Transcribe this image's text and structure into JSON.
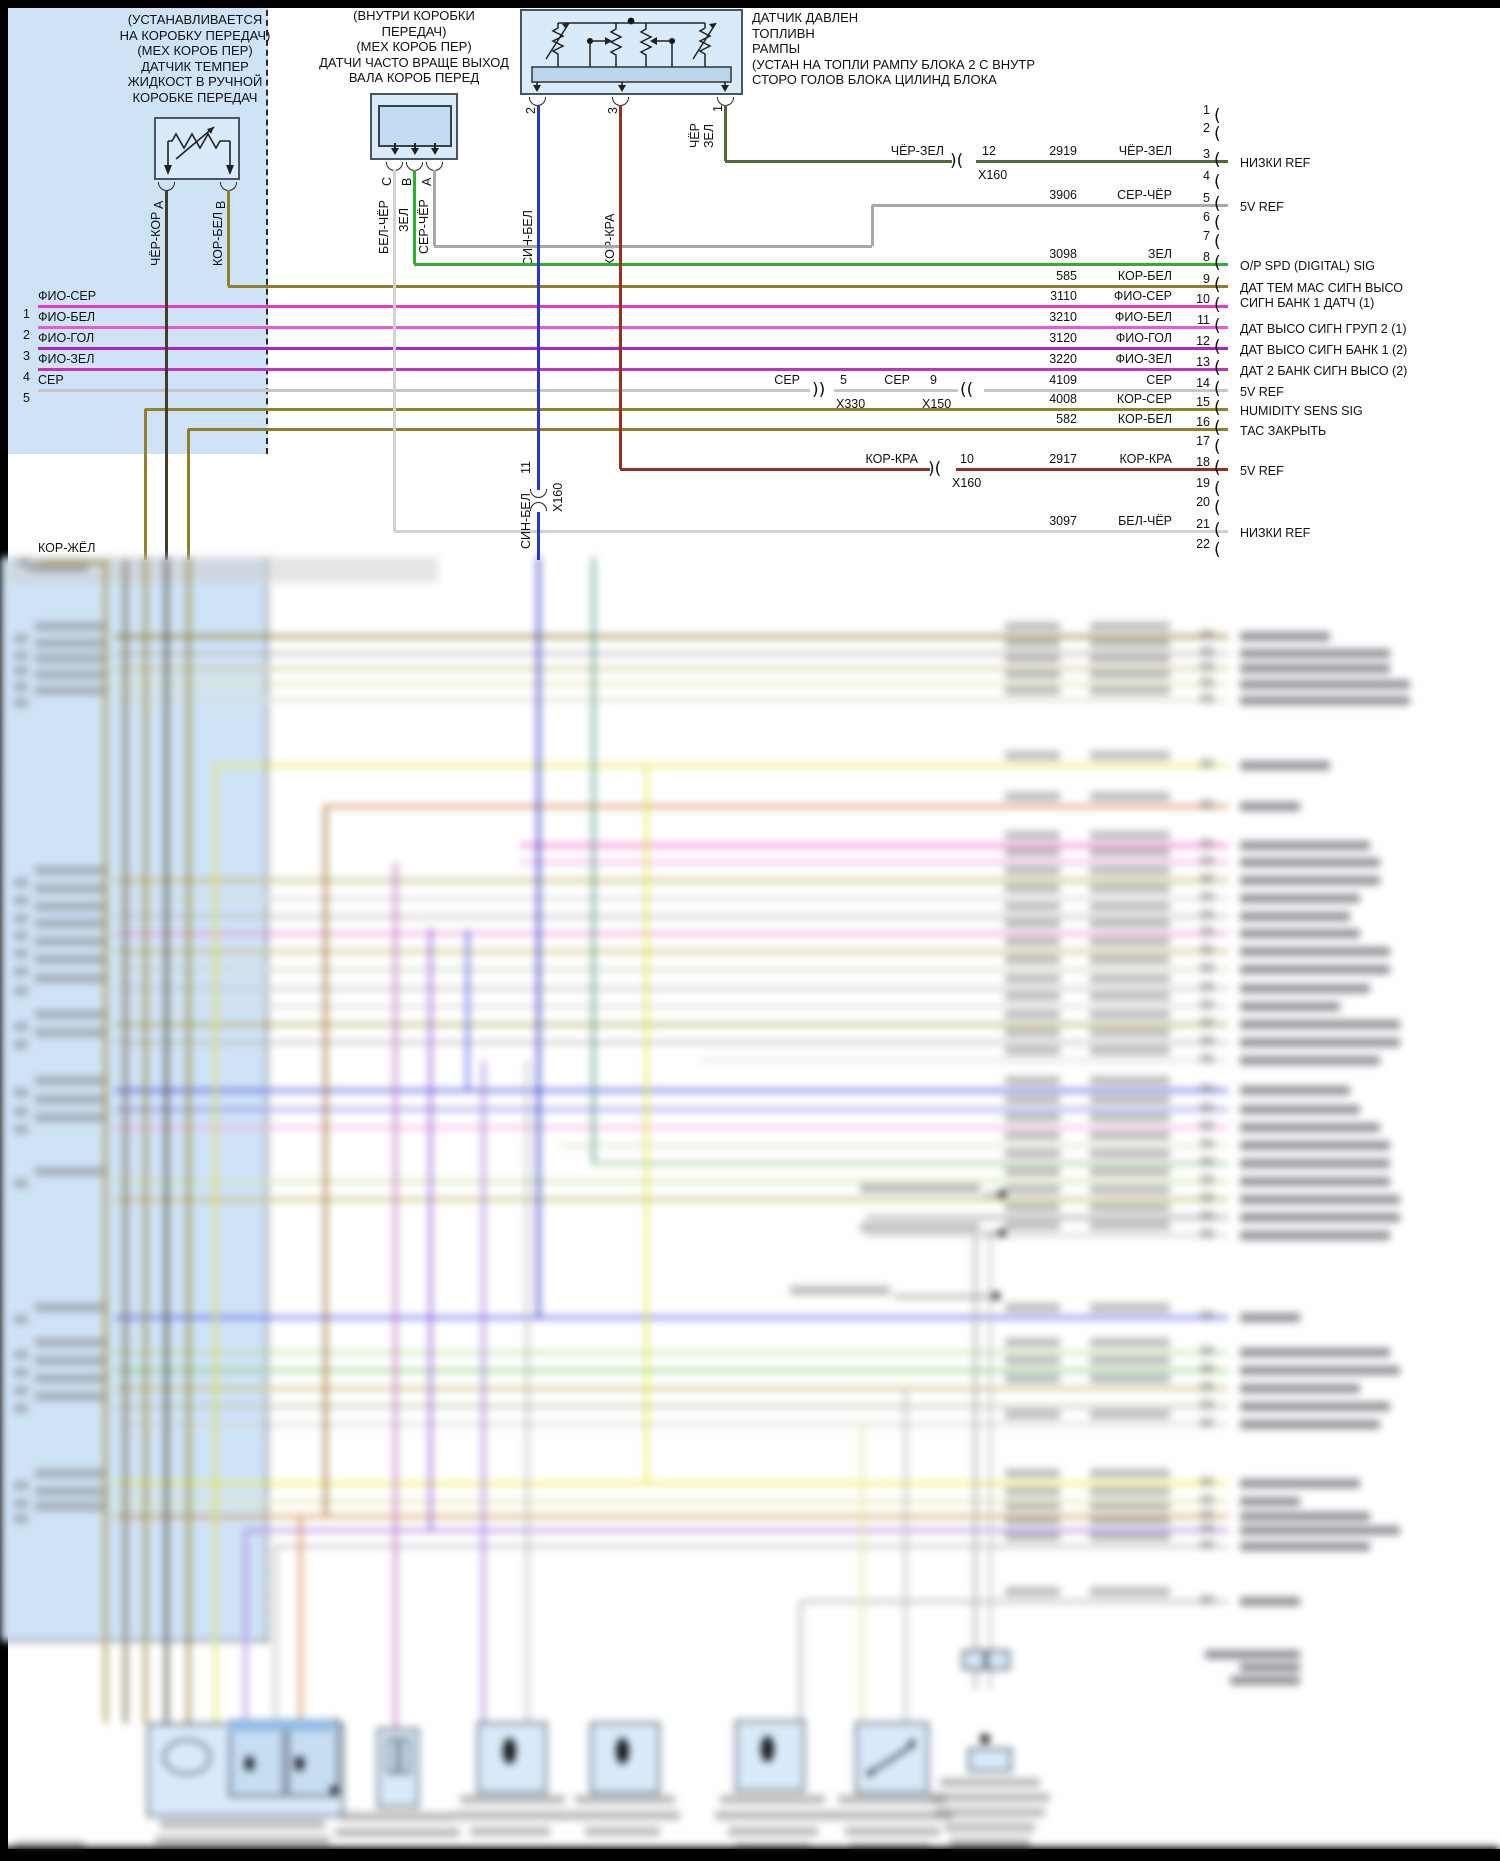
{
  "diagram": {
    "temp_sensor": {
      "label_lines": [
        "(УСТАНАВЛИВАЕТСЯ",
        "НА КОРОБКУ ПЕРЕДАЧ)",
        "(МЕХ КОРОБ ПЕР)",
        "ДАТЧИК ТЕМПЕР",
        "ЖИДКОСТ В РУЧНОЙ",
        "КОРОБКЕ ПЕРЕДАЧ"
      ],
      "pins": [
        {
          "id": "A",
          "wire": "ЧЁР-КОР"
        },
        {
          "id": "B",
          "wire": "КОР-БЕЛ"
        }
      ]
    },
    "speed_sensor": {
      "label_lines": [
        "(ВНУТРИ КОРОБКИ",
        "ПЕРЕДАЧ)",
        "(МЕХ КОРОБ ПЕР)",
        "ДАТЧИ ЧАСТО ВРАЩЕ ВЫХОД",
        "ВАЛА КОРОБ ПЕРЕД"
      ],
      "pins": [
        {
          "id": "C",
          "wire": "БЕЛ-ЧЁР"
        },
        {
          "id": "B",
          "wire": "ЗЕЛ"
        },
        {
          "id": "A",
          "wire": "СЕР-ЧЁР"
        }
      ]
    },
    "fuel_rail_sensor": {
      "label_lines": [
        "ДАТЧИК ДАВЛЕН",
        "ТОПЛИВН",
        "РАМПЫ",
        "(УСТАН НА ТОПЛИ РАМПУ БЛОКА 2 С ВНУТР",
        "СТОРО ГОЛОВ БЛОКА ЦИЛИНД БЛОКА"
      ],
      "pins": [
        {
          "id": "2",
          "wire": "СИН-БЕЛ",
          "wire_lines": [
            "СИН-БЕЛ"
          ]
        },
        {
          "id": "3",
          "wire": "КОР-КРА",
          "wire_lines": [
            "КОР-КРА"
          ]
        },
        {
          "id": "1",
          "wire": "ЧЁР-ЗЕЛ",
          "wire_lines": [
            "ЧЁР",
            "ЗЕЛ"
          ]
        }
      ]
    },
    "left_inputs": [
      {
        "n": "1",
        "wire": "ФИО-СЕР"
      },
      {
        "n": "2",
        "wire": "ФИО-БЕЛ"
      },
      {
        "n": "3",
        "wire": "ФИО-ГОЛ"
      },
      {
        "n": "4",
        "wire": "ФИО-ЗЕЛ"
      },
      {
        "n": "5",
        "wire": "СЕР"
      }
    ],
    "bottom_left_wire": "КОР-ЖЁЛ",
    "inline_connectors": [
      {
        "wire": "ЧЁР-ЗЕЛ",
        "pin": "12",
        "name": "X160"
      },
      {
        "wire": "СЕР",
        "pin": "5",
        "name": "X330"
      },
      {
        "wire": "СЕР",
        "pin": "9",
        "name": "X150"
      },
      {
        "wire": "КОР-КРА",
        "pin": "10",
        "name": "X160"
      },
      {
        "wire": "СИН-БЕЛ",
        "pin": "11",
        "name": "X160"
      }
    ],
    "pcm_pins": [
      {
        "n": "1"
      },
      {
        "n": "2"
      },
      {
        "n": "3",
        "circuit": "2919",
        "wire": "ЧЁР-ЗЕЛ",
        "label": "НИЗКИ REF"
      },
      {
        "n": "4"
      },
      {
        "n": "5",
        "circuit": "3906",
        "wire": "СЕР-ЧЁР",
        "label": "5V REF"
      },
      {
        "n": "6"
      },
      {
        "n": "7"
      },
      {
        "n": "8",
        "circuit": "3098",
        "wire": "ЗЕЛ",
        "label": "O/P SPD (DIGITAL) SIG"
      },
      {
        "n": "9",
        "circuit": "585",
        "wire": "КОР-БЕЛ",
        "label": "ДАТ ТЕМ МАС СИГН ВЫСО\nСИГН БАНК 1 ДАТЧ (1)"
      },
      {
        "n": "10",
        "circuit": "3110",
        "wire": "ФИО-СЕР"
      },
      {
        "n": "11",
        "circuit": "3210",
        "wire": "ФИО-БЕЛ",
        "label": "ДАТ ВЫСО СИГН ГРУП 2 (1)"
      },
      {
        "n": "12",
        "circuit": "3120",
        "wire": "ФИО-ГОЛ",
        "label": "ДАТ ВЫСО СИГН БАНК 1 (2)"
      },
      {
        "n": "13",
        "circuit": "3220",
        "wire": "ФИО-ЗЕЛ",
        "label": "ДАТ 2 БАНК СИГН ВЫСО (2)"
      },
      {
        "n": "14",
        "circuit": "4109",
        "wire": "СЕР",
        "label": "5V REF"
      },
      {
        "n": "15",
        "circuit": "4008",
        "wire": "КОР-СЕР",
        "label": "HUMIDITY SENS SIG"
      },
      {
        "n": "16",
        "circuit": "582",
        "wire": "КОР-БЕЛ",
        "label": "ТАС ЗАКРЫТЬ"
      },
      {
        "n": "17"
      },
      {
        "n": "18",
        "circuit": "2917",
        "wire": "КОР-КРА",
        "label": "5V REF"
      },
      {
        "n": "19"
      },
      {
        "n": "20"
      },
      {
        "n": "21",
        "circuit": "3097",
        "wire": "БЕЛ-ЧЁР",
        "label": "НИЗКИ REF"
      },
      {
        "n": "22"
      }
    ],
    "wire_colors": {
      "ЧЁР-КОР": "#443c29",
      "КОР-БЕЛ": "#8f7c2c",
      "БЕЛ-ЧЁР": "#d2d2d2",
      "ЗЕЛ": "#2fae2f",
      "СЕР-ЧЁР": "#a8a8a8",
      "СИН-БЕЛ": "#2b36c4",
      "КОР-КРА": "#96321a",
      "ЧЁР-ЗЕЛ": "#4f6b35",
      "ФИО-СЕР": "#e23ad2",
      "ФИО-БЕЛ": "#e858d8",
      "ФИО-ГОЛ": "#a727c9",
      "ФИО-ЗЕЛ": "#c332bd",
      "СЕР": "#c6c6c6",
      "КОР-СЕР": "#94802e",
      "КОР-ЖЁЛ": "#9c8b2f"
    },
    "connector_fill": "#cfe3f7",
    "component_fill": "#d9eafa"
  }
}
